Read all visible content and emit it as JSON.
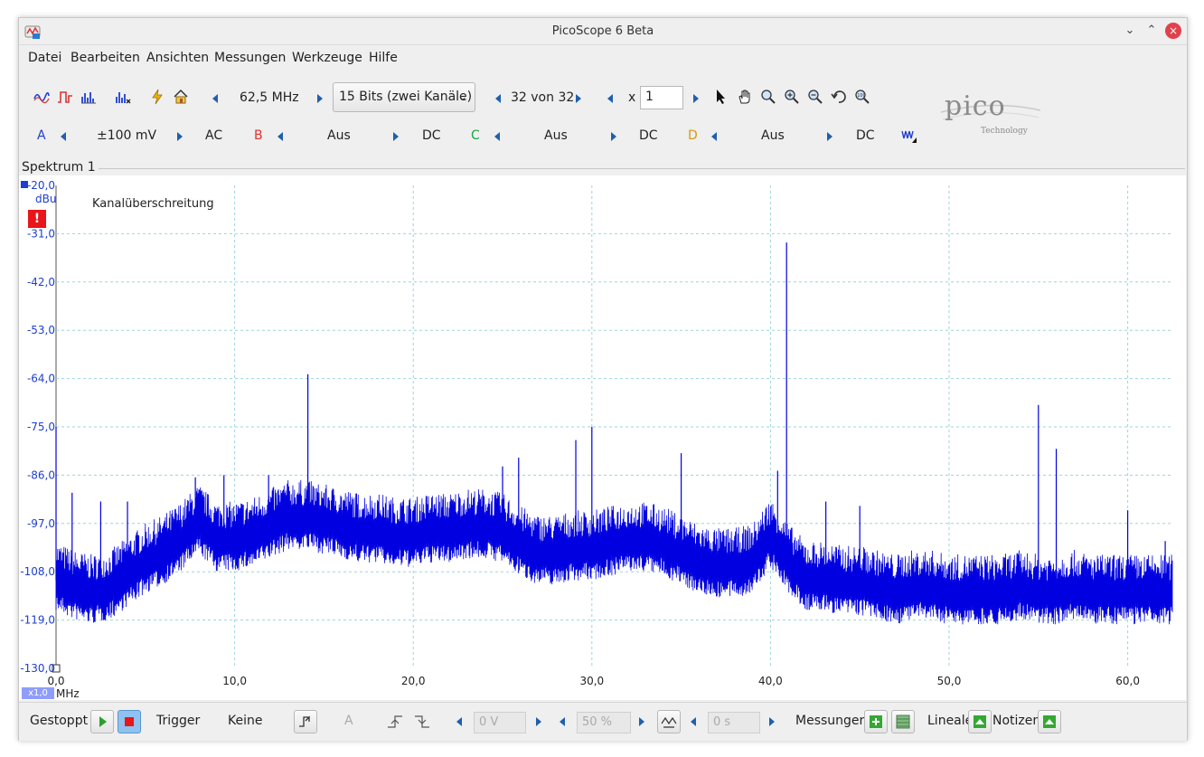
{
  "window": {
    "title": "PicoScope 6 Beta",
    "controls": {
      "minimize": "⌄",
      "maximize": "⌃",
      "close": "×"
    }
  },
  "menu": [
    "Datei",
    "Bearbeiten",
    "Ansichten",
    "Messungen",
    "Werkzeuge",
    "Hilfe"
  ],
  "toolbar1": {
    "sample_rate": "62,5 MHz",
    "resolution": "15 Bits (zwei Kanäle)",
    "buffer": "32 von 32",
    "zoom_prefix": "x",
    "zoom_value": "1"
  },
  "channels": [
    {
      "letter": "A",
      "range": "±100 mV",
      "coupling": "AC",
      "color": "#1e3fd0"
    },
    {
      "letter": "B",
      "range": "Aus",
      "coupling": "DC",
      "color": "#e0302a"
    },
    {
      "letter": "C",
      "range": "Aus",
      "coupling": "DC",
      "color": "#1aa63a"
    },
    {
      "letter": "D",
      "range": "Aus",
      "coupling": "DC",
      "color": "#d49a10"
    }
  ],
  "logo": {
    "name": "pico",
    "sub": "Technology"
  },
  "view": {
    "title": "Spektrum 1",
    "warning": "Kanalüberschreitung",
    "y_unit": "dBu",
    "x_unit": "MHz",
    "x_scale_badge": "x1,0"
  },
  "chart_data": {
    "type": "line",
    "ylabel": "dBu",
    "xlabel": "MHz",
    "xlim": [
      0,
      62.5
    ],
    "ylim": [
      -130,
      -20
    ],
    "y_ticks": [
      "-20,0",
      "-31,0",
      "-42,0",
      "-53,0",
      "-64,0",
      "-75,0",
      "-86,0",
      "-97,0",
      "-108,0",
      "-119,0",
      "-130,0"
    ],
    "x_ticks": [
      "0,0",
      "10,0",
      "20,0",
      "30,0",
      "40,0",
      "50,0",
      "60,0"
    ],
    "grid": true,
    "series": [
      {
        "color": "#0000e0",
        "x": [
          0,
          1,
          2,
          3,
          4,
          5,
          6,
          7,
          8,
          9,
          10,
          11,
          12,
          13,
          14,
          15,
          16,
          17,
          18,
          19,
          20,
          21,
          22,
          23,
          24,
          25,
          26,
          27,
          28,
          29,
          30,
          31,
          32,
          33,
          34,
          35,
          36,
          37,
          38,
          39,
          40,
          41,
          42,
          43,
          44,
          45,
          46,
          47,
          48,
          49,
          50,
          51,
          52,
          53,
          54,
          55,
          56,
          57,
          58,
          59,
          60,
          61,
          62
        ],
        "y": [
          -110,
          -112,
          -113,
          -112,
          -109,
          -106,
          -104,
          -101,
          -97,
          -101,
          -101,
          -100,
          -98,
          -96,
          -96,
          -97,
          -98,
          -99,
          -99,
          -100,
          -100,
          -99,
          -99,
          -98,
          -98,
          -99,
          -102,
          -104,
          -104,
          -103,
          -103,
          -102,
          -101,
          -101,
          -102,
          -104,
          -106,
          -107,
          -107,
          -106,
          -100,
          -106,
          -110,
          -110,
          -111,
          -111,
          -112,
          -113,
          -112,
          -112,
          -113,
          -113,
          -113,
          -113,
          -112,
          -113,
          -113,
          -112,
          -113,
          -113,
          -113,
          -113,
          -113
        ]
      }
    ],
    "peaks": [
      {
        "x": 0.0,
        "y": -75.0
      },
      {
        "x": 0.9,
        "y": -90.0
      },
      {
        "x": 2.5,
        "y": -92.0
      },
      {
        "x": 4.0,
        "y": -92.0
      },
      {
        "x": 7.8,
        "y": -86.5
      },
      {
        "x": 9.4,
        "y": -86.0
      },
      {
        "x": 11.9,
        "y": -86.0
      },
      {
        "x": 14.1,
        "y": -63.0
      },
      {
        "x": 15.0,
        "y": -90.0
      },
      {
        "x": 25.0,
        "y": -84.0
      },
      {
        "x": 25.9,
        "y": -82.0
      },
      {
        "x": 29.1,
        "y": -78.0
      },
      {
        "x": 30.0,
        "y": -75.0
      },
      {
        "x": 35.0,
        "y": -81.0
      },
      {
        "x": 40.4,
        "y": -85.0
      },
      {
        "x": 40.9,
        "y": -33.0
      },
      {
        "x": 43.1,
        "y": -92.0
      },
      {
        "x": 45.0,
        "y": -93.0
      },
      {
        "x": 55.0,
        "y": -70.0
      },
      {
        "x": 56.0,
        "y": -80.0
      },
      {
        "x": 60.0,
        "y": -94.0
      },
      {
        "x": 62.1,
        "y": -101.0
      }
    ]
  },
  "status": {
    "state": "Gestoppt",
    "trigger_label": "Trigger",
    "trigger_mode": "Keine",
    "trigger_channel": "A",
    "level": "0 V",
    "percent": "50 %",
    "delay": "0 s",
    "measurements": "Messungen",
    "rulers": "Lineale",
    "notes": "Notizen"
  }
}
